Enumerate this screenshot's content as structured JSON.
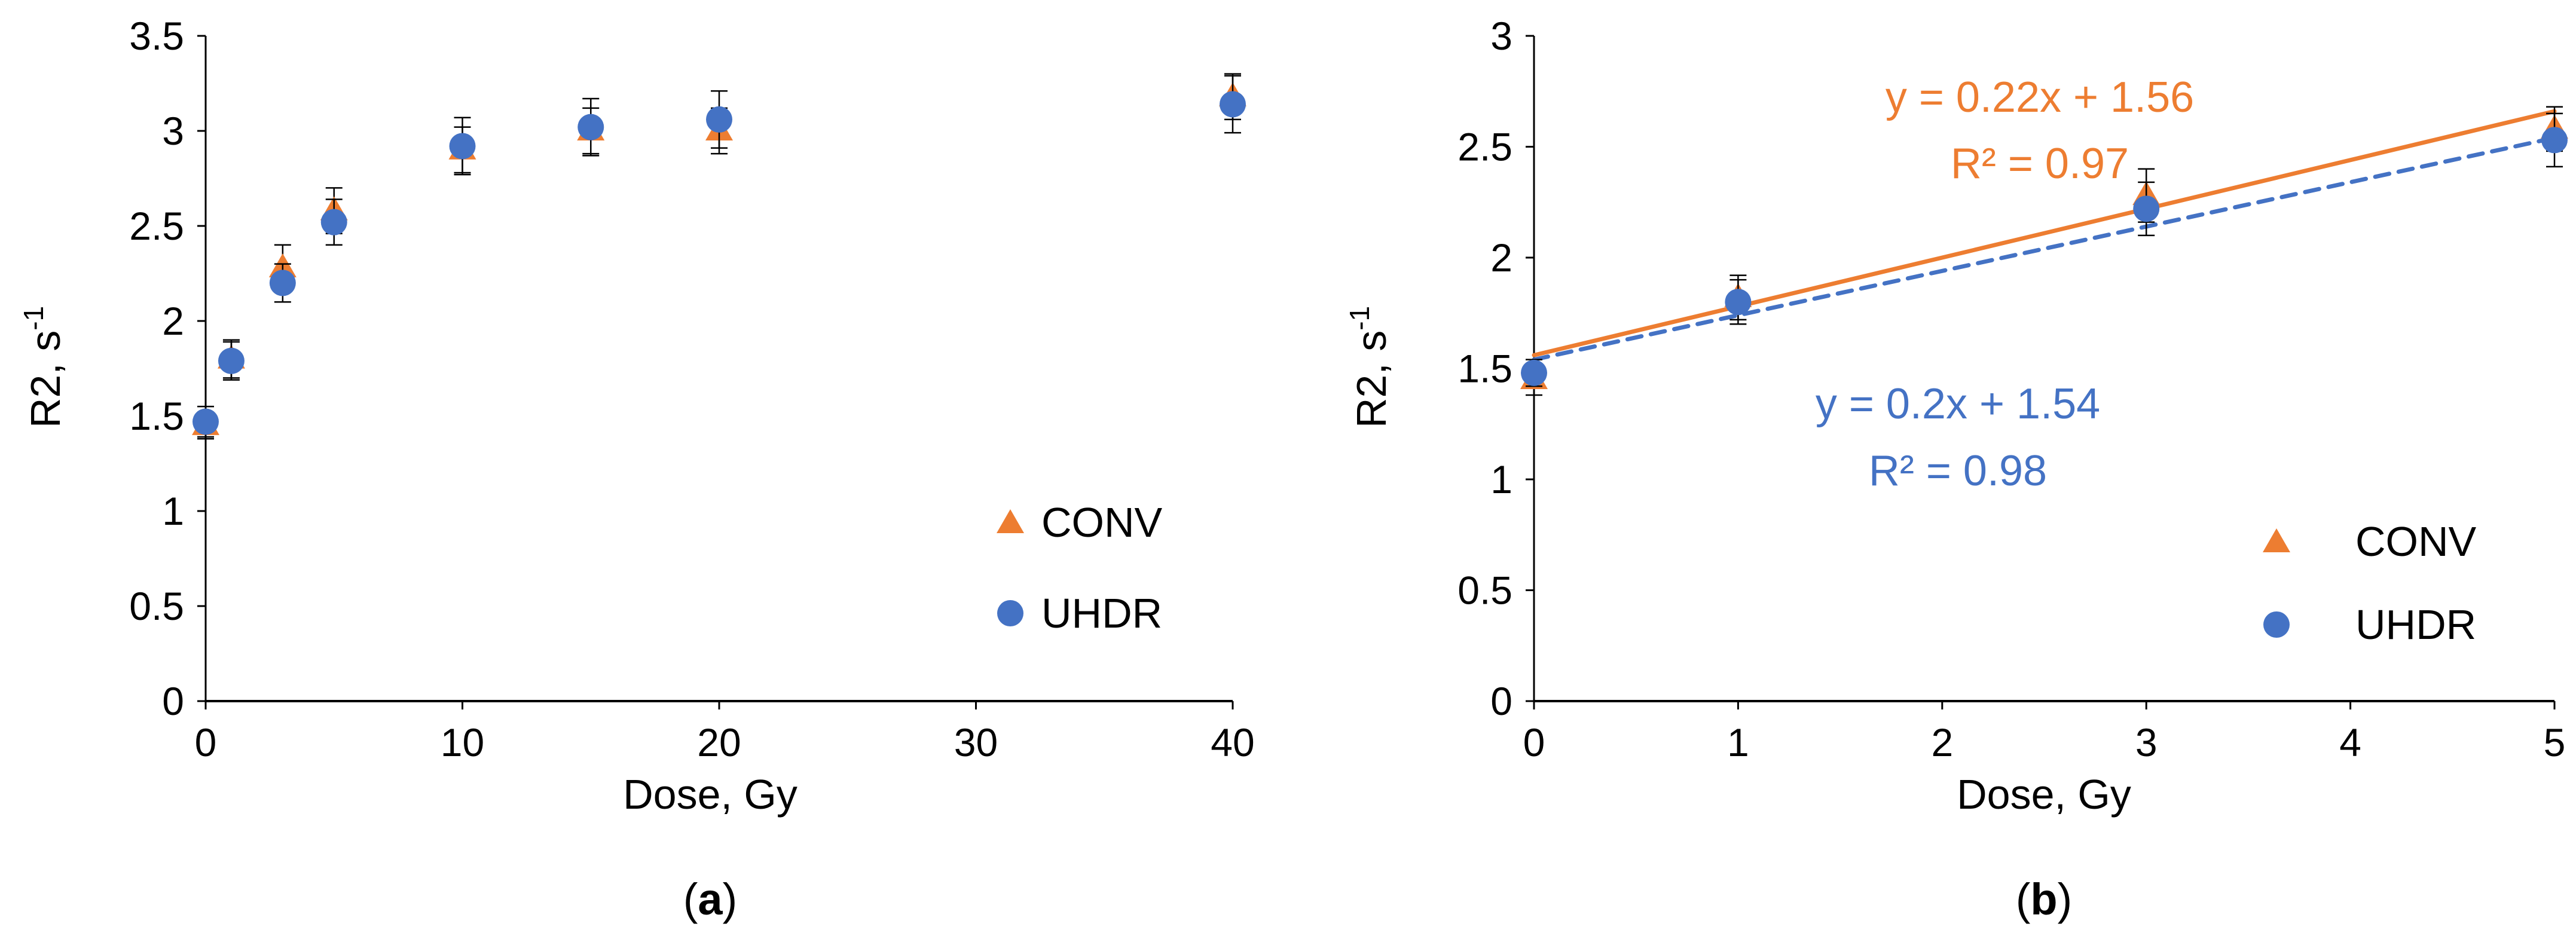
{
  "colors": {
    "conv": "#ED7D31",
    "uhdr": "#4472C4",
    "axis": "#000000"
  },
  "chart_data": [
    {
      "type": "scatter",
      "panel_label": "a",
      "xlabel": "Dose, Gy",
      "ylabel": "R2, s",
      "ylabel_sup": "-1",
      "xlim": [
        0,
        40
      ],
      "ylim": [
        0,
        3.5
      ],
      "xticks": [
        0,
        10,
        20,
        30,
        40
      ],
      "yticks": [
        0,
        0.5,
        1,
        1.5,
        2,
        2.5,
        3,
        3.5
      ],
      "grid": false,
      "legend_position": "bottom-right",
      "series": [
        {
          "name": "CONV",
          "marker": "triangle",
          "x": [
            0,
            1,
            3,
            5,
            10,
            15,
            20,
            40
          ],
          "y": [
            1.45,
            1.8,
            2.28,
            2.58,
            2.9,
            3.0,
            3.0,
            3.18
          ],
          "err": [
            0.07,
            0.1,
            0.12,
            0.12,
            0.12,
            0.12,
            0.12,
            0.12
          ]
        },
        {
          "name": "UHDR",
          "marker": "circle",
          "x": [
            0,
            1,
            3,
            5,
            10,
            15,
            20,
            40
          ],
          "y": [
            1.47,
            1.79,
            2.2,
            2.52,
            2.92,
            3.02,
            3.06,
            3.14
          ],
          "err": [
            0.08,
            0.1,
            0.1,
            0.12,
            0.15,
            0.15,
            0.15,
            0.15
          ]
        }
      ]
    },
    {
      "type": "scatter",
      "panel_label": "b",
      "xlabel": "Dose, Gy",
      "ylabel": "R2, s",
      "ylabel_sup": "-1",
      "xlim": [
        0,
        5
      ],
      "ylim": [
        0,
        3
      ],
      "xticks": [
        0,
        1,
        2,
        3,
        4,
        5
      ],
      "yticks": [
        0,
        0.5,
        1,
        1.5,
        2,
        2.5,
        3
      ],
      "grid": false,
      "legend_position": "bottom-right",
      "series": [
        {
          "name": "CONV",
          "marker": "triangle",
          "x": [
            0,
            1,
            3,
            5
          ],
          "y": [
            1.45,
            1.82,
            2.28,
            2.58
          ],
          "err": [
            0.07,
            0.1,
            0.12,
            0.1
          ],
          "trendline": {
            "slope": 0.22,
            "intercept": 1.56,
            "style": "solid",
            "equation": "y = 0.22x + 1.56",
            "r2": "R² = 0.97"
          }
        },
        {
          "name": "UHDR",
          "marker": "circle",
          "x": [
            0,
            1,
            3,
            5
          ],
          "y": [
            1.48,
            1.8,
            2.22,
            2.53
          ],
          "err": [
            0.06,
            0.1,
            0.12,
            0.12
          ],
          "trendline": {
            "slope": 0.2,
            "intercept": 1.54,
            "style": "dashed",
            "equation": "y = 0.2x + 1.54",
            "r2": "R² = 0.98"
          }
        }
      ]
    }
  ]
}
